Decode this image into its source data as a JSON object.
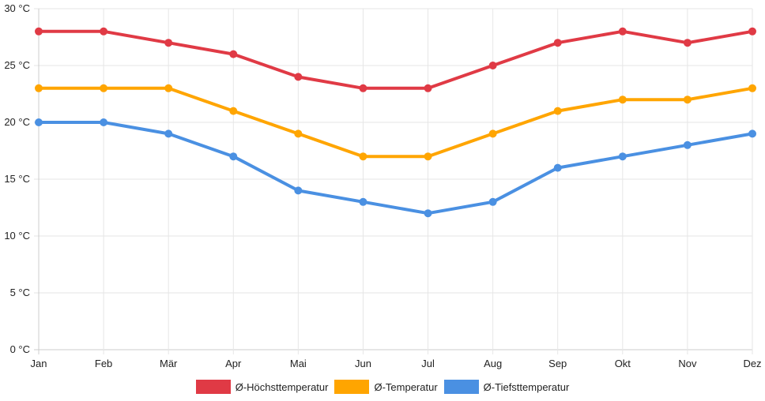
{
  "chart_data": {
    "type": "line",
    "title": "",
    "xlabel": "",
    "ylabel": "",
    "categories": [
      "Jan",
      "Feb",
      "Mär",
      "Apr",
      "Mai",
      "Jun",
      "Jul",
      "Aug",
      "Sep",
      "Okt",
      "Nov",
      "Dez"
    ],
    "ylim": [
      0,
      30
    ],
    "yticks": [
      0,
      5,
      10,
      15,
      20,
      25,
      30
    ],
    "ytick_labels": [
      "0 °C",
      "5 °C",
      "10 °C",
      "15 °C",
      "20 °C",
      "25 °C",
      "30 °C"
    ],
    "grid": true,
    "legend_position": "bottom",
    "series": [
      {
        "name": "Ø-Höchsttemperatur",
        "color": "#e03a45",
        "values": [
          28,
          28,
          27,
          26,
          24,
          23,
          23,
          25,
          27,
          28,
          27,
          28
        ]
      },
      {
        "name": "Ø-Temperatur",
        "color": "#ffa500",
        "values": [
          23,
          23,
          23,
          21,
          19,
          17,
          17,
          19,
          21,
          22,
          22,
          23
        ]
      },
      {
        "name": "Ø-Tiefsttemperatur",
        "color": "#4a90e2",
        "values": [
          20,
          20,
          19,
          17,
          14,
          13,
          12,
          13,
          16,
          17,
          18,
          19
        ]
      }
    ]
  }
}
